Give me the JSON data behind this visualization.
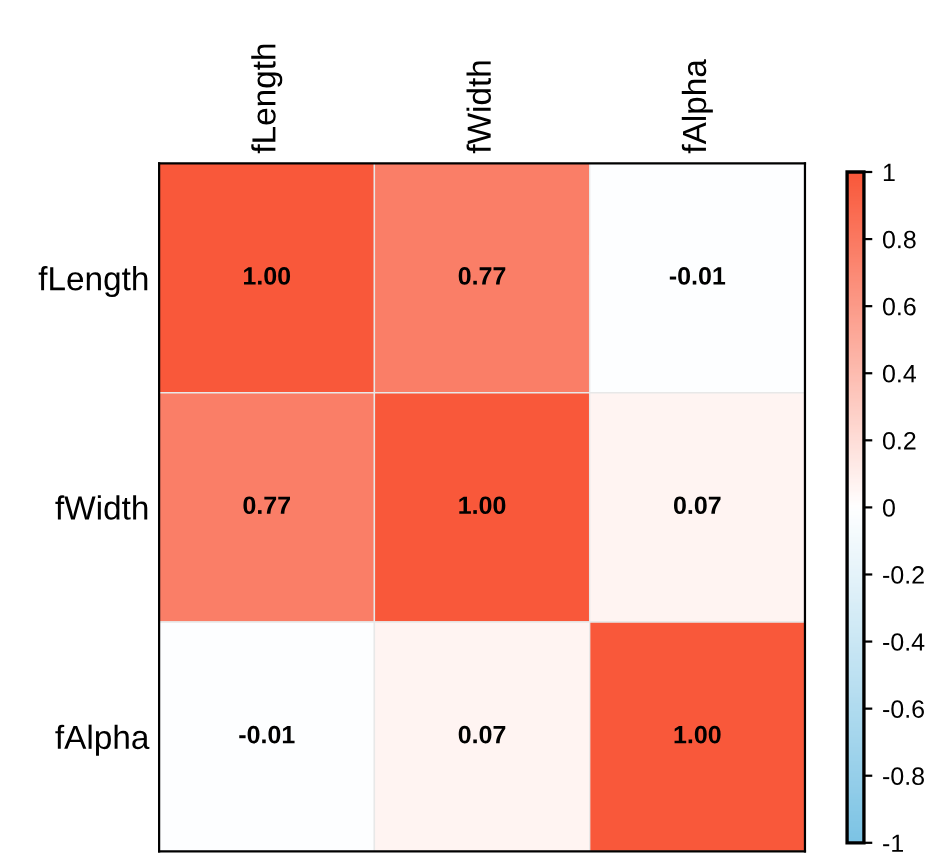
{
  "chart_data": {
    "type": "heatmap",
    "categories": [
      "fLength",
      "fWidth",
      "fAlpha"
    ],
    "y_categories": [
      "fLength",
      "fWidth",
      "fAlpha"
    ],
    "cells": [
      [
        1.0,
        0.77,
        -0.01
      ],
      [
        0.77,
        1.0,
        0.07
      ],
      [
        -0.01,
        0.07,
        1.0
      ]
    ],
    "cell_labels": [
      [
        "1.00",
        "0.77",
        "-0.01"
      ],
      [
        "0.77",
        "1.00",
        "0.07"
      ],
      [
        "-0.01",
        "0.07",
        "1.00"
      ]
    ],
    "clim": [
      -1,
      1
    ],
    "cticks": [
      -1,
      -0.8,
      -0.6,
      -0.4,
      -0.2,
      0,
      0.2,
      0.4,
      0.6,
      0.8,
      1
    ]
  }
}
